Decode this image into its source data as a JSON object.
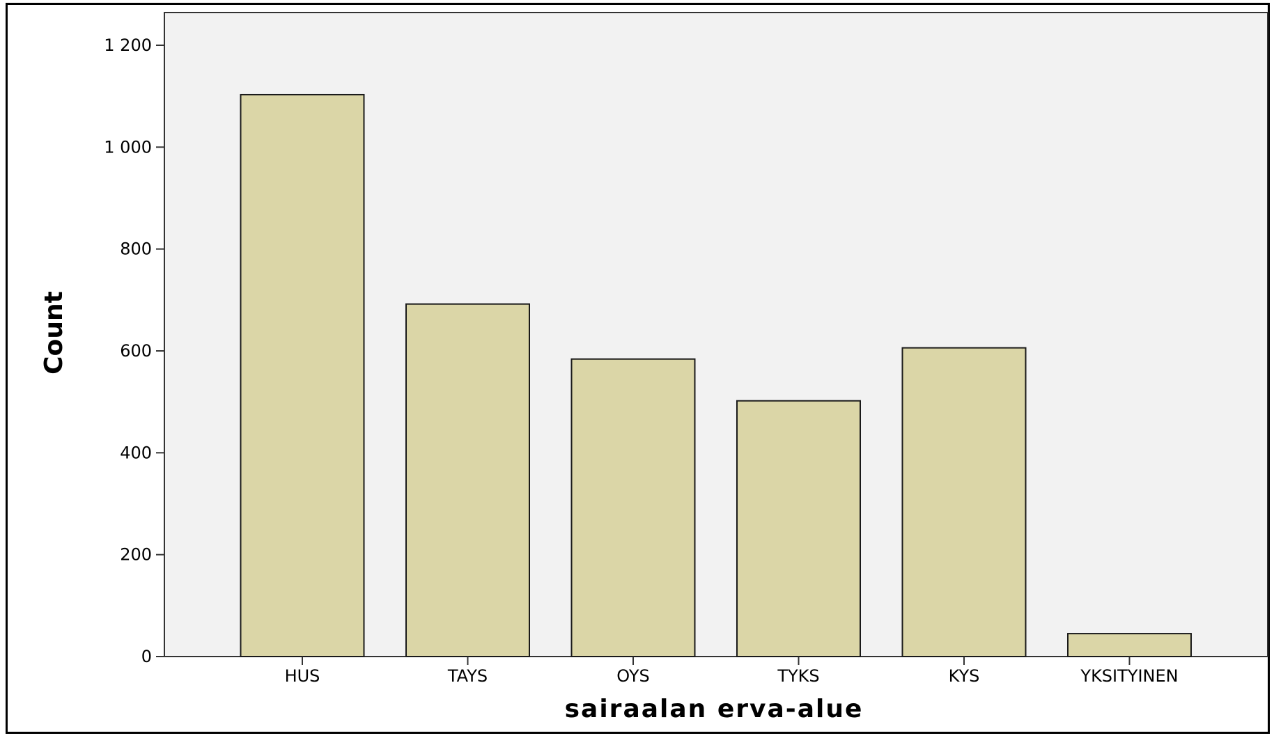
{
  "chart_data": {
    "type": "bar",
    "categories": [
      "HUS",
      "TAYS",
      "OYS",
      "TYKS",
      "KYS",
      "YKSITYINEN"
    ],
    "values": [
      1103,
      692,
      584,
      502,
      606,
      45
    ],
    "xlabel": "sairaalan erva-alue",
    "ylabel": "Count",
    "ylim": [
      0,
      1200
    ],
    "yticks": [
      0,
      200,
      400,
      600,
      800,
      1000,
      1200
    ],
    "ytick_labels": [
      "0",
      "200",
      "400",
      "600",
      "800",
      "1 000",
      "1 200"
    ],
    "grid": false,
    "legend": "none",
    "colors": {
      "plot_background": "#f2f2f2",
      "bar_fill": "#dbd6a7",
      "bar_stroke": "#1a1a1a",
      "axis": "#333333"
    }
  }
}
